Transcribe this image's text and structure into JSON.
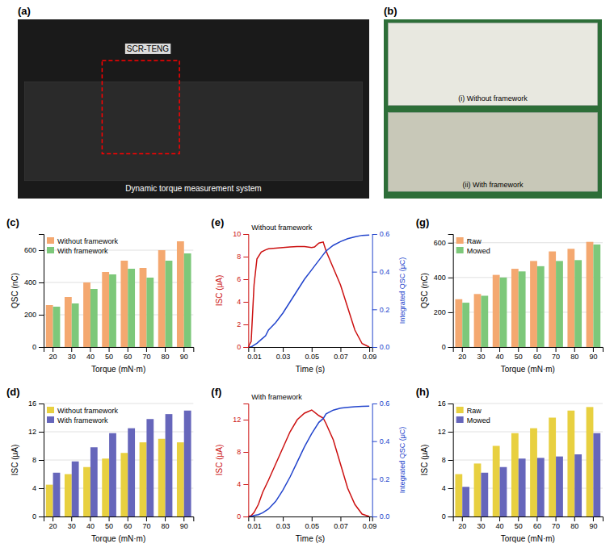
{
  "chart_data": [
    {
      "type": "photo",
      "title": "(a)",
      "annotations": [
        "SCR-TENG",
        "Dynamic torque measurement system"
      ]
    },
    {
      "type": "photo",
      "title": "(b)",
      "annotations": [
        "(i) Without framework",
        "(ii) With framework"
      ]
    },
    {
      "type": "bar",
      "title": "(c)",
      "categories": [
        20,
        30,
        40,
        50,
        60,
        70,
        80,
        90
      ],
      "series": [
        {
          "name": "Without framework",
          "color": "#F4A870",
          "values": [
            260,
            310,
            400,
            465,
            535,
            490,
            600,
            655
          ]
        },
        {
          "name": "With framework",
          "color": "#7DC87A",
          "values": [
            250,
            270,
            360,
            450,
            485,
            430,
            535,
            580
          ]
        }
      ],
      "xlabel": "Torque (mN·m)",
      "ylabel": "QSC (nC)",
      "ylim": [
        0,
        700
      ],
      "yticks": [
        0,
        200,
        400,
        600
      ],
      "grid": true,
      "legend": "upper left"
    },
    {
      "type": "bar",
      "title": "(d)",
      "categories": [
        20,
        30,
        40,
        50,
        60,
        70,
        80,
        90
      ],
      "series": [
        {
          "name": "Without framework",
          "color": "#E8D040",
          "values": [
            4.5,
            6.0,
            7.0,
            8.2,
            9.0,
            10.5,
            11.0,
            10.5
          ]
        },
        {
          "name": "With framework",
          "color": "#6666BB",
          "values": [
            6.2,
            7.8,
            9.8,
            11.8,
            12.5,
            13.8,
            14.5,
            15.0
          ]
        }
      ],
      "xlabel": "Torque (mN·m)",
      "ylabel": "ISC (μA)",
      "ylim": [
        0,
        16
      ],
      "yticks": [
        0,
        4,
        8,
        12,
        16
      ],
      "grid": true,
      "legend": "upper left"
    },
    {
      "type": "line",
      "title": "(e)",
      "annotations": [
        "Without framework"
      ],
      "x": [
        0.006,
        0.008,
        0.01,
        0.012,
        0.015,
        0.018,
        0.02,
        0.025,
        0.03,
        0.035,
        0.04,
        0.045,
        0.05,
        0.052,
        0.055,
        0.058,
        0.06,
        0.065,
        0.07,
        0.075,
        0.08,
        0.085,
        0.09
      ],
      "series": [
        {
          "color": "#cc1111",
          "values": [
            0.0,
            0.5,
            5.5,
            7.8,
            8.4,
            8.6,
            8.7,
            8.75,
            8.8,
            8.85,
            8.9,
            8.9,
            8.8,
            8.85,
            9.2,
            9.3,
            8.5,
            7.0,
            5.5,
            3.5,
            1.5,
            0.3,
            0.0
          ]
        },
        {
          "color": "#2244cc",
          "axis": "y2",
          "values": [
            0.0,
            0.0,
            0.01,
            0.02,
            0.04,
            0.06,
            0.09,
            0.13,
            0.18,
            0.24,
            0.3,
            0.36,
            0.41,
            0.43,
            0.46,
            0.49,
            0.51,
            0.54,
            0.56,
            0.575,
            0.585,
            0.593,
            0.595
          ]
        }
      ],
      "xlabel": "Time (s)",
      "ylabel": "ISC (μA)",
      "y2label": "Integrated QSC (μC)",
      "xlim": [
        0.006,
        0.092
      ],
      "xticks": [
        0.01,
        0.03,
        0.05,
        0.07,
        0.09
      ],
      "ylim": [
        0,
        10
      ],
      "yticks": [
        0,
        2,
        4,
        6,
        8,
        10
      ],
      "y2lim": [
        0,
        0.6
      ],
      "y2ticks": [
        {
          "value": 0,
          "label": "0.0"
        },
        0.2,
        0.4,
        0.6
      ]
    },
    {
      "type": "line",
      "title": "(f)",
      "annotations": [
        "With framework"
      ],
      "x": [
        0.006,
        0.008,
        0.01,
        0.013,
        0.016,
        0.02,
        0.025,
        0.03,
        0.035,
        0.04,
        0.045,
        0.05,
        0.055,
        0.058,
        0.06,
        0.065,
        0.07,
        0.075,
        0.08,
        0.085,
        0.09
      ],
      "series": [
        {
          "color": "#cc1111",
          "values": [
            0.0,
            0.1,
            0.5,
            1.5,
            3.0,
            4.5,
            6.5,
            8.5,
            10.5,
            12.0,
            12.8,
            13.2,
            12.5,
            12.2,
            11.5,
            9.5,
            6.5,
            3.5,
            1.5,
            0.3,
            0.0
          ]
        },
        {
          "color": "#2244cc",
          "axis": "y2",
          "values": [
            0.0,
            0.0,
            0.005,
            0.01,
            0.02,
            0.04,
            0.08,
            0.14,
            0.21,
            0.29,
            0.37,
            0.44,
            0.5,
            0.52,
            0.545,
            0.565,
            0.575,
            0.58,
            0.583,
            0.585,
            0.586
          ]
        }
      ],
      "xlabel": "Time (s)",
      "ylabel": "ISC (μA)",
      "y2label": "Integrated QSC (μC)",
      "xlim": [
        0.006,
        0.092
      ],
      "xticks": [
        0.01,
        0.03,
        0.05,
        0.07,
        0.09
      ],
      "ylim": [
        0,
        14
      ],
      "yticks": [
        0,
        4,
        8,
        12
      ],
      "y2lim": [
        0,
        0.6
      ],
      "y2ticks": [
        {
          "value": 0,
          "label": "0.0"
        },
        0.2,
        0.4,
        0.6
      ]
    },
    {
      "type": "bar",
      "title": "(g)",
      "categories": [
        20,
        30,
        40,
        50,
        60,
        70,
        80,
        90
      ],
      "series": [
        {
          "name": "Raw",
          "color": "#F4A870",
          "values": [
            275,
            305,
            415,
            450,
            495,
            550,
            565,
            605
          ]
        },
        {
          "name": "Mowed",
          "color": "#7DC87A",
          "values": [
            255,
            295,
            400,
            435,
            465,
            495,
            500,
            590
          ]
        }
      ],
      "xlabel": "Torque (mN·m)",
      "ylabel": "QSC (nC)",
      "ylim": [
        0,
        650
      ],
      "yticks": [
        0,
        200,
        400,
        600
      ],
      "grid": true,
      "legend": "upper left"
    },
    {
      "type": "bar",
      "title": "(h)",
      "categories": [
        20,
        30,
        40,
        50,
        60,
        70,
        80,
        90
      ],
      "series": [
        {
          "name": "Raw",
          "color": "#E8D040",
          "values": [
            6.0,
            7.5,
            10.0,
            11.8,
            12.5,
            14.0,
            15.0,
            15.5
          ]
        },
        {
          "name": "Mowed",
          "color": "#6666BB",
          "values": [
            4.2,
            6.2,
            7.0,
            8.2,
            8.3,
            8.5,
            8.8,
            11.8
          ]
        }
      ],
      "xlabel": "Torque (mN·m)",
      "ylabel": "ISC (μA)",
      "ylim": [
        0,
        16
      ],
      "yticks": [
        0,
        4,
        8,
        12,
        16
      ],
      "grid": true,
      "legend": "upper left"
    }
  ]
}
